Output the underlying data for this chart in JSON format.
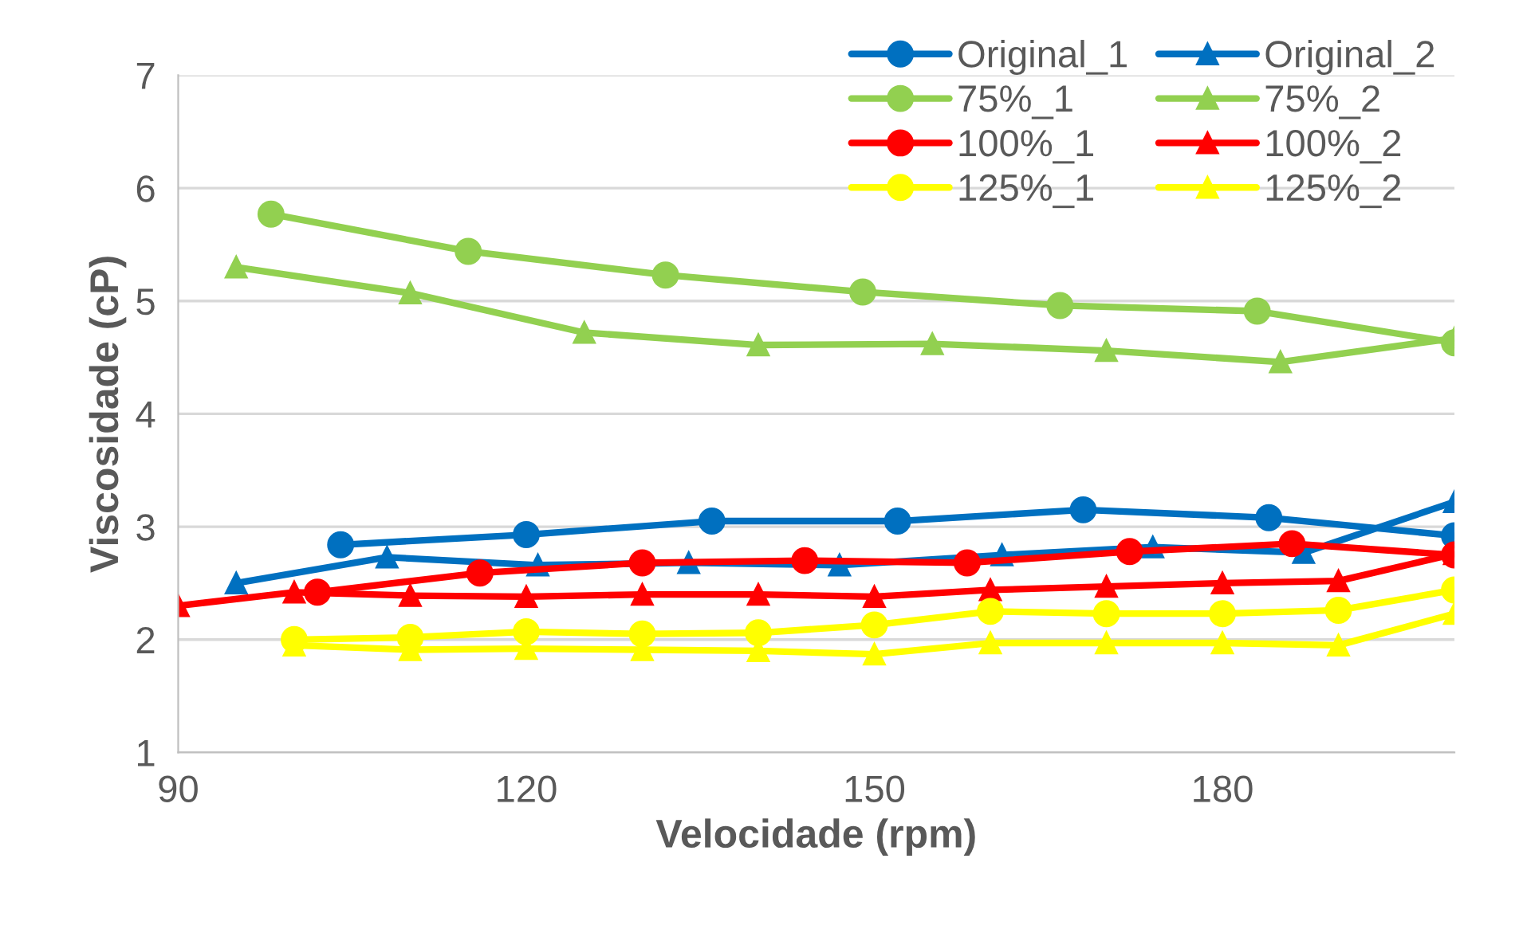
{
  "chart_data": {
    "type": "line",
    "xlabel": "Velocidade (rpm)",
    "ylabel": "Viscosidade (cP)",
    "xlim": [
      90,
      200
    ],
    "xticks": [
      90,
      120,
      150,
      180
    ],
    "ylim": [
      1,
      7
    ],
    "yticks": [
      1,
      2,
      3,
      4,
      5,
      6,
      7
    ],
    "grid": "y",
    "legend": "top right",
    "series": [
      {
        "name": "Original_1",
        "color": "#0070c0",
        "marker": "circle",
        "x": [
          104,
          120,
          136,
          152,
          168,
          184,
          200
        ],
        "values": [
          2.84,
          2.93,
          3.05,
          3.05,
          3.15,
          3.08,
          2.92
        ]
      },
      {
        "name": "Original_2",
        "color": "#0070c0",
        "marker": "triangle",
        "x": [
          95,
          108,
          121,
          134,
          147,
          161,
          174,
          187,
          200
        ],
        "values": [
          2.5,
          2.73,
          2.66,
          2.68,
          2.66,
          2.75,
          2.82,
          2.77,
          3.22
        ]
      },
      {
        "name": "75%_1",
        "color": "#92d050",
        "marker": "circle",
        "x": [
          98,
          115,
          132,
          149,
          166,
          183,
          200
        ],
        "values": [
          5.77,
          5.44,
          5.23,
          5.08,
          4.96,
          4.91,
          4.63
        ]
      },
      {
        "name": "75%_2",
        "color": "#92d050",
        "marker": "triangle",
        "x": [
          95,
          110,
          125,
          140,
          155,
          170,
          185,
          200
        ],
        "values": [
          5.3,
          5.07,
          4.72,
          4.61,
          4.62,
          4.56,
          4.46,
          4.67
        ]
      },
      {
        "name": "100%_1",
        "color": "#ff0000",
        "marker": "circle",
        "x": [
          102,
          116,
          130,
          144,
          158,
          172,
          186,
          200
        ],
        "values": [
          2.42,
          2.59,
          2.68,
          2.7,
          2.68,
          2.78,
          2.85,
          2.75
        ]
      },
      {
        "name": "100%_2",
        "color": "#ff0000",
        "marker": "triangle",
        "x": [
          90,
          100,
          110,
          120,
          130,
          140,
          150,
          160,
          170,
          180,
          190,
          200
        ],
        "values": [
          2.3,
          2.42,
          2.39,
          2.38,
          2.4,
          2.4,
          2.38,
          2.44,
          2.47,
          2.5,
          2.52,
          2.76
        ]
      },
      {
        "name": "125%_1",
        "color": "#ffff00",
        "marker": "circle",
        "x": [
          100,
          110,
          120,
          130,
          140,
          150,
          160,
          170,
          180,
          190,
          200
        ],
        "values": [
          2.0,
          2.02,
          2.07,
          2.05,
          2.06,
          2.13,
          2.25,
          2.23,
          2.23,
          2.26,
          2.44
        ]
      },
      {
        "name": "125%_2",
        "color": "#ffff00",
        "marker": "triangle",
        "x": [
          100,
          110,
          120,
          130,
          140,
          150,
          160,
          170,
          180,
          190,
          200
        ],
        "values": [
          1.95,
          1.91,
          1.92,
          1.91,
          1.9,
          1.87,
          1.97,
          1.97,
          1.97,
          1.95,
          2.23
        ]
      }
    ]
  }
}
